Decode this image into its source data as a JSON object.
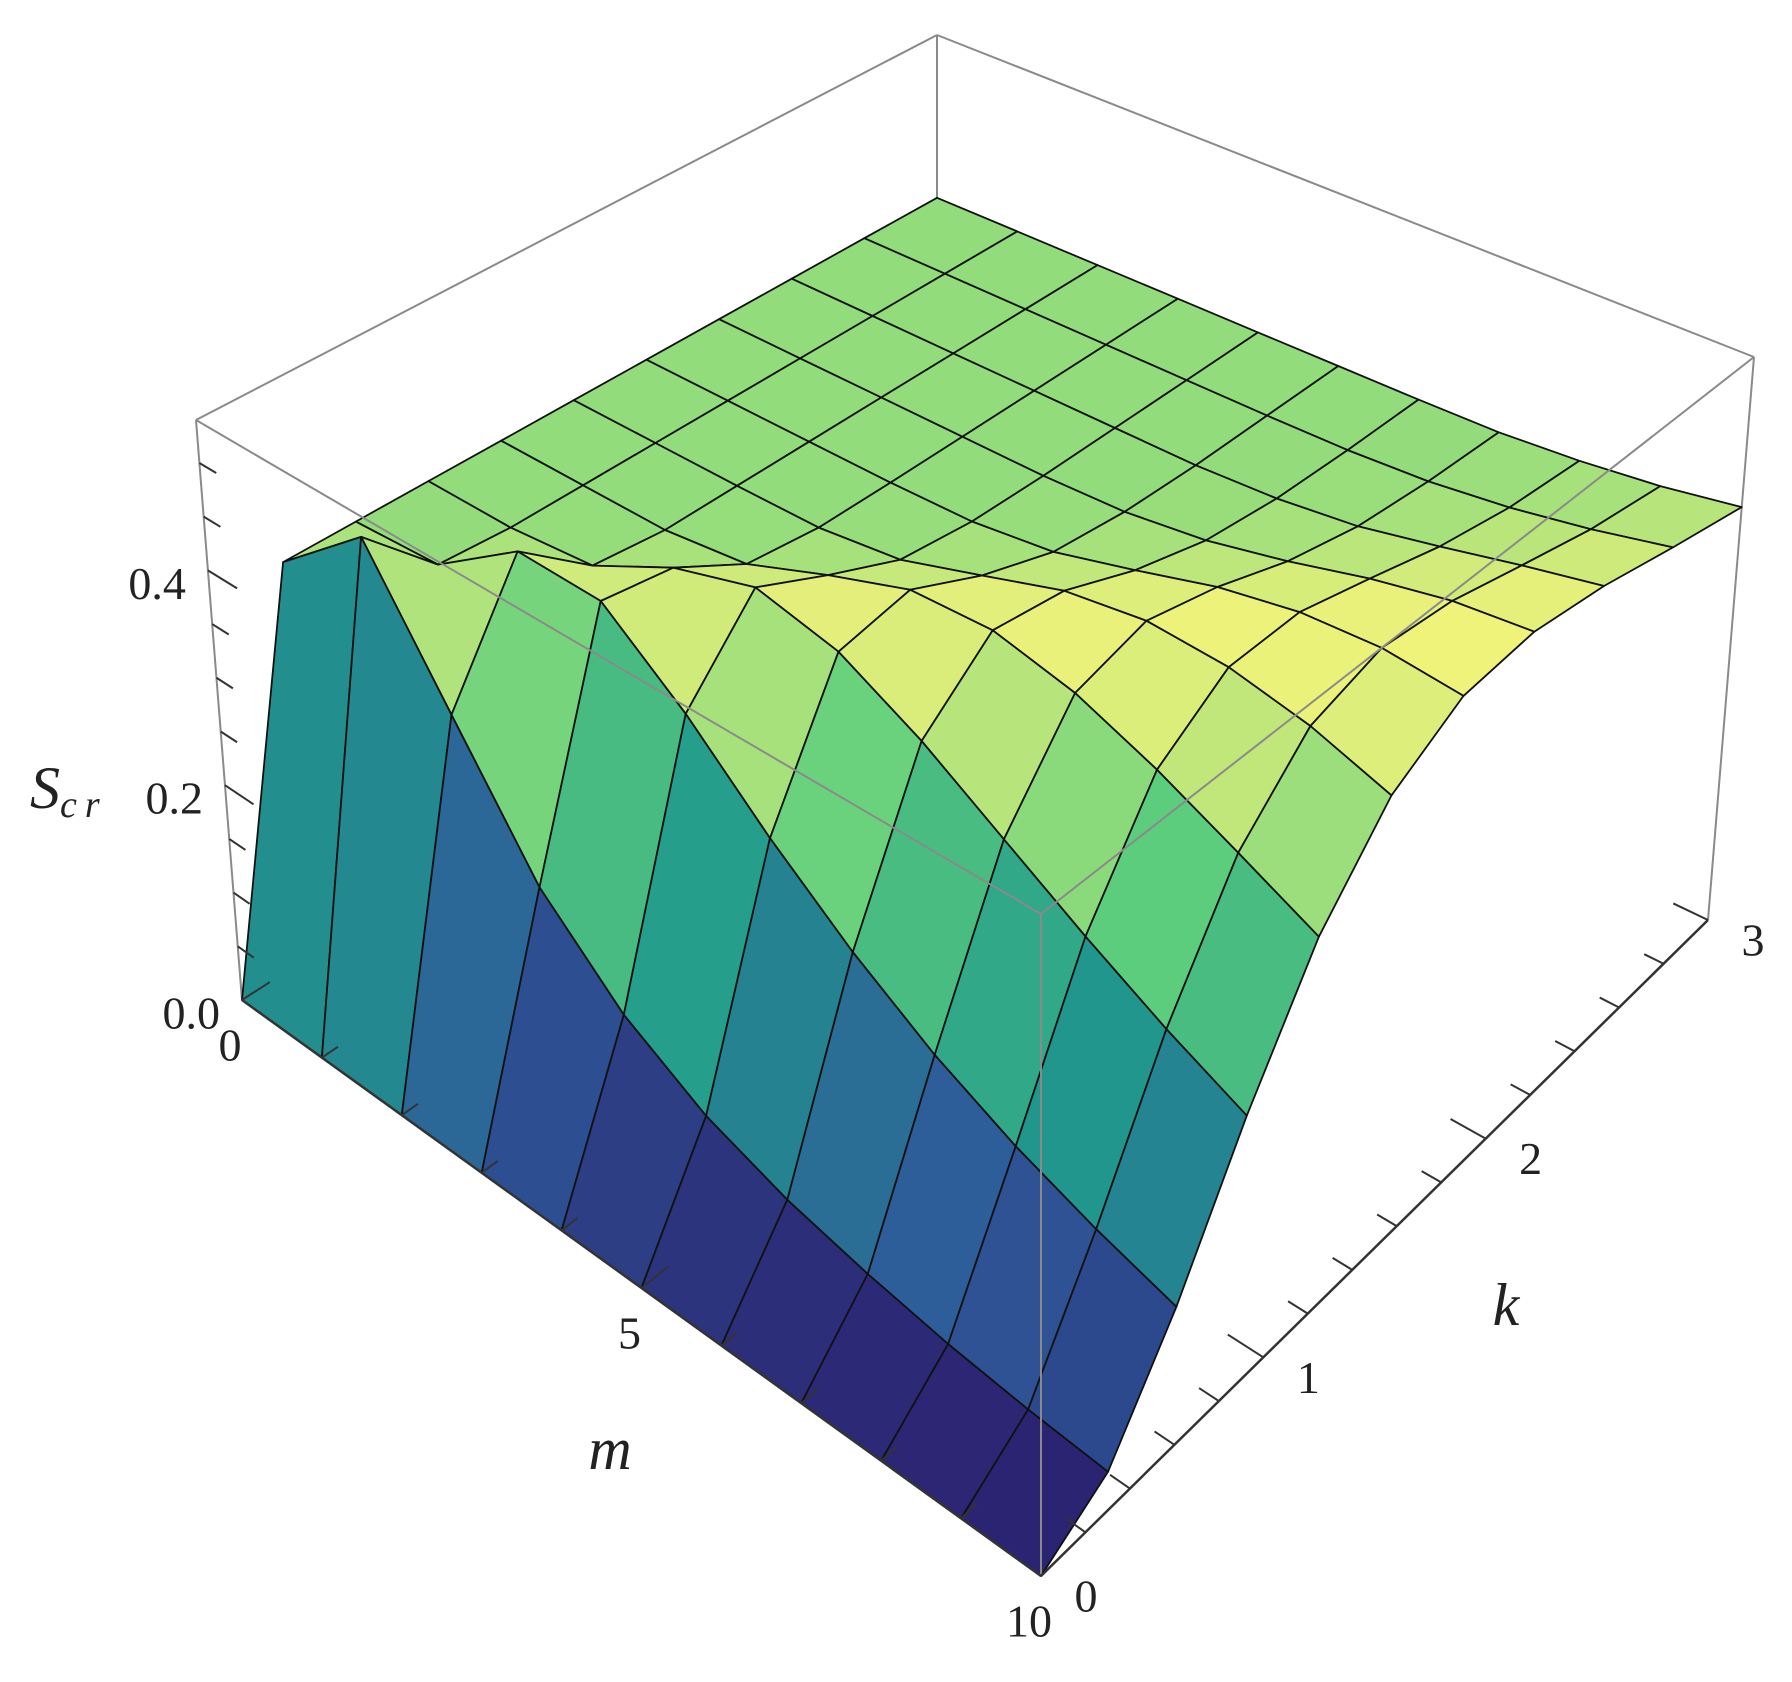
{
  "chart_data": {
    "type": "surface",
    "xlabel": "m",
    "ylabel": "k",
    "zlabel": {
      "text": "S",
      "sub": "cr"
    },
    "m": [
      0,
      1,
      2,
      3,
      4,
      5,
      6,
      7,
      8,
      9,
      10
    ],
    "k": [
      0,
      0.3,
      0.6,
      0.9,
      1.2,
      1.5,
      1.8,
      2.1,
      2.4,
      2.7,
      3
    ],
    "z": [
      [
        0,
        0.37,
        0.37,
        0.37,
        0.37,
        0.37,
        0.37,
        0.37,
        0.37,
        0.37,
        0.37
      ],
      [
        0,
        0.44,
        0.375,
        0.37,
        0.37,
        0.37,
        0.37,
        0.37,
        0.37,
        0.37,
        0.37
      ],
      [
        0,
        0.322,
        0.432,
        0.378,
        0.37,
        0.37,
        0.37,
        0.37,
        0.37,
        0.37,
        0.37
      ],
      [
        0,
        0.212,
        0.43,
        0.419,
        0.38,
        0.371,
        0.37,
        0.37,
        0.37,
        0.37,
        0.37
      ],
      [
        0,
        0.145,
        0.371,
        0.443,
        0.411,
        0.381,
        0.372,
        0.37,
        0.37,
        0.37,
        0.37
      ],
      [
        0,
        0.103,
        0.303,
        0.426,
        0.438,
        0.406,
        0.382,
        0.373,
        0.37,
        0.37,
        0.37
      ],
      [
        0,
        0.077,
        0.246,
        0.387,
        0.441,
        0.431,
        0.403,
        0.383,
        0.374,
        0.371,
        0.37
      ],
      [
        0,
        0.06,
        0.2,
        0.341,
        0.424,
        0.442,
        0.425,
        0.4,
        0.383,
        0.375,
        0.371
      ],
      [
        0,
        0.047,
        0.165,
        0.297,
        0.395,
        0.438,
        0.439,
        0.42,
        0.399,
        0.384,
        0.376
      ],
      [
        0,
        0.038,
        0.138,
        0.258,
        0.361,
        0.423,
        0.443,
        0.435,
        0.416,
        0.397,
        0.384
      ],
      [
        0,
        0.032,
        0.116,
        0.225,
        0.327,
        0.399,
        0.436,
        0.442,
        0.431,
        0.413,
        0.396
      ]
    ],
    "mlim": [
      0,
      10
    ],
    "klim": [
      0,
      3
    ],
    "zlim": [
      0,
      0.54
    ],
    "mticks": [
      0,
      5,
      10
    ],
    "mminor": [
      1,
      2,
      3,
      4,
      6,
      7,
      8,
      9
    ],
    "kticks": [
      0,
      1,
      2,
      3
    ],
    "kminor": [
      0.2,
      0.4,
      0.6,
      0.8,
      1.2,
      1.4,
      1.6,
      1.8,
      2.2,
      2.4,
      2.6,
      2.8
    ],
    "zticks": [
      {
        "value": 0,
        "label": "0.0"
      },
      0.2,
      0.4
    ],
    "zminor": [
      0.05,
      0.1,
      0.15,
      0.25,
      0.3,
      0.35,
      0.45,
      0.5
    ],
    "colormap": [
      "#2b1a6b",
      "#2e5a9a",
      "#209a8c",
      "#5fcf7c",
      "#f5f47a"
    ],
    "mesh_color": "#111111",
    "box": true
  }
}
